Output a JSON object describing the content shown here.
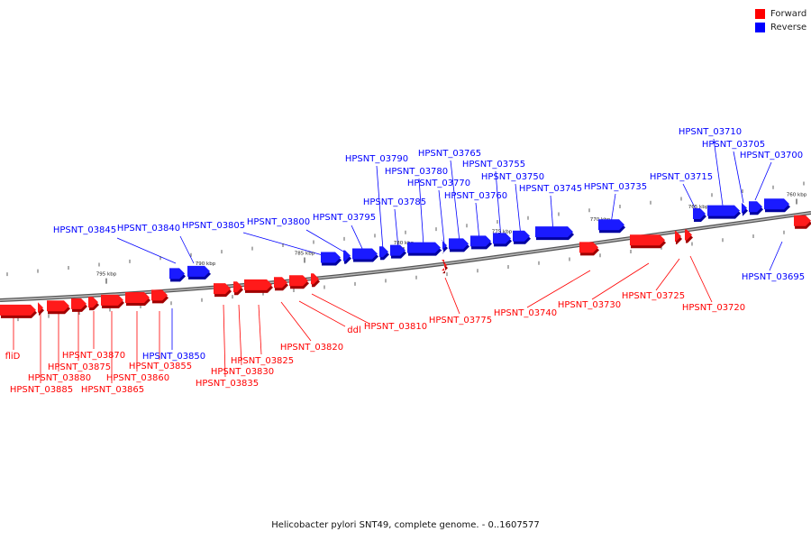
{
  "legend": {
    "forward": {
      "label": "Forward",
      "color": "#ff0000"
    },
    "reverse": {
      "label": "Reverse",
      "color": "#0000ff"
    }
  },
  "footer": {
    "caption": "Helicobacter pylori SNT49, complete genome. - 0..1607577"
  },
  "ticks": [
    "795 kbp",
    "790 kbp",
    "785 kbp",
    "780 kbp",
    "775 kbp",
    "770 kbp",
    "765 kbp",
    "760 kbp"
  ],
  "genes": {
    "reverse": [
      "HPSNT_03845",
      "HPSNT_03840",
      "HPSNT_03805",
      "HPSNT_03800",
      "HPSNT_03795",
      "HPSNT_03790",
      "HPSNT_03785",
      "HPSNT_03780",
      "HPSNT_03770",
      "HPSNT_03765",
      "HPSNT_03760",
      "HPSNT_03755",
      "HPSNT_03750",
      "HPSNT_03745",
      "HPSNT_03735",
      "HPSNT_03715",
      "HPSNT_03710",
      "HPSNT_03705",
      "HPSNT_03700",
      "HPSNT_03695",
      "HPSNT_03850"
    ],
    "forward": [
      "fliD",
      "HPSNT_03885",
      "HPSNT_03880",
      "HPSNT_03875",
      "HPSNT_03870",
      "HPSNT_03865",
      "HPSNT_03860",
      "HPSNT_03855",
      "HPSNT_03835",
      "HPSNT_03830",
      "HPSNT_03825",
      "HPSNT_03820",
      "ddl",
      "HPSNT_03810",
      "HPSNT_03775",
      "HPSNT_03740",
      "HPSNT_03730",
      "HPSNT_03725",
      "HPSNT_03720"
    ]
  }
}
